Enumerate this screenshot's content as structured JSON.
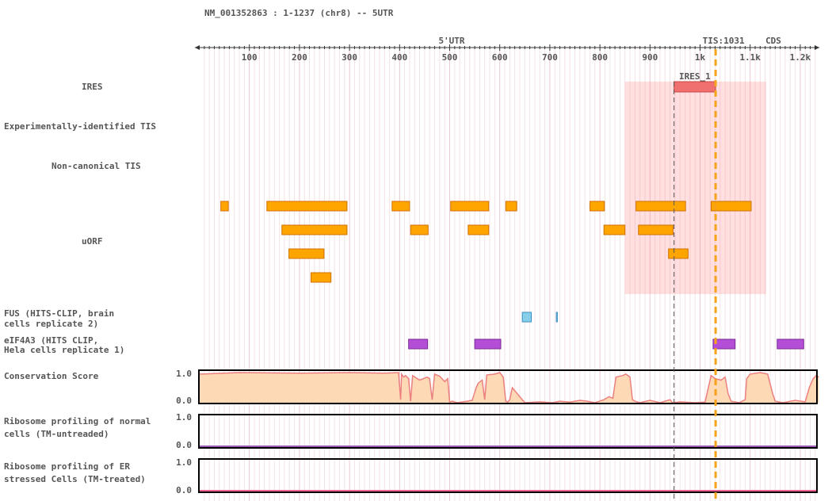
{
  "title": "NM_001352863 : 1-1237 (chr8) -- 5UTR",
  "axis": {
    "range": [
      1,
      1237
    ],
    "ticks": [
      {
        "pos": 100,
        "label": "100"
      },
      {
        "pos": 200,
        "label": "200"
      },
      {
        "pos": 300,
        "label": "300"
      },
      {
        "pos": 400,
        "label": "400"
      },
      {
        "pos": 500,
        "label": "500"
      },
      {
        "pos": 600,
        "label": "600"
      },
      {
        "pos": 700,
        "label": "700"
      },
      {
        "pos": 800,
        "label": "800"
      },
      {
        "pos": 900,
        "label": "900"
      },
      {
        "pos": 1000,
        "label": "1k"
      },
      {
        "pos": 1100,
        "label": "1.1k"
      },
      {
        "pos": 1200,
        "label": "1.2k"
      }
    ]
  },
  "regions": {
    "utr5_label": "5'UTR",
    "tis_label": "TIS:1031",
    "tis_pos": 1031,
    "cds_label": "CDS",
    "colors": {
      "utr5": "#dd0000",
      "tis": "#f7a21b",
      "cds": "#008800"
    }
  },
  "tracks": {
    "ires": {
      "label": "IRES",
      "items": [
        {
          "name": "IRES_1",
          "start": 948,
          "end": 1031
        }
      ],
      "highlight": {
        "start": 850,
        "end": 1132
      },
      "color": "#f07070"
    },
    "exp_tis": {
      "label": "Experimentally-identified TIS"
    },
    "noncanonical_tis": {
      "label": "Non-canonical TIS"
    },
    "uorf": {
      "label": "uORF",
      "color": "#ffa500",
      "rows": [
        [
          [
            43,
            58
          ],
          [
            135,
            295
          ],
          [
            385,
            420
          ],
          [
            502,
            578
          ],
          [
            612,
            634
          ],
          [
            780,
            809
          ],
          [
            872,
            971
          ],
          [
            1022,
            1102
          ]
        ],
        [
          [
            165,
            295
          ],
          [
            422,
            457
          ],
          [
            537,
            578
          ],
          [
            808,
            850
          ],
          [
            877,
            946
          ]
        ],
        [
          [
            179,
            249
          ],
          [
            937,
            976
          ]
        ],
        [
          [
            223,
            263
          ]
        ]
      ]
    },
    "fus": {
      "label": "FUS (HITS-CLIP, brain",
      "label2": "cells replicate 2)",
      "color": "#87ceeb",
      "items": [
        [
          645,
          663
        ],
        [
          713,
          715
        ]
      ]
    },
    "eif4a3": {
      "label": "eIF4A3 (HITS CLIP,",
      "label2": "Hela cells replicate 1)",
      "color": "#b44ed6",
      "items": [
        [
          418,
          456
        ],
        [
          550,
          602
        ],
        [
          1026,
          1070
        ],
        [
          1154,
          1207
        ]
      ]
    },
    "conservation": {
      "label": "Conservation Score",
      "ymax": "1.0",
      "ymin": "0.0",
      "fill": "#fdd9b5",
      "line": "#ec7f7f",
      "points": [
        [
          1,
          0.95
        ],
        [
          80,
          1.0
        ],
        [
          200,
          0.98
        ],
        [
          300,
          1.0
        ],
        [
          370,
          0.98
        ],
        [
          398,
          1.0
        ],
        [
          402,
          0.1
        ],
        [
          404,
          0.95
        ],
        [
          408,
          0.85
        ],
        [
          412,
          0.9
        ],
        [
          418,
          0.8
        ],
        [
          422,
          0.05
        ],
        [
          426,
          0.9
        ],
        [
          440,
          0.75
        ],
        [
          455,
          0.85
        ],
        [
          460,
          0.8
        ],
        [
          465,
          0.1
        ],
        [
          470,
          0.95
        ],
        [
          480,
          0.88
        ],
        [
          490,
          0.7
        ],
        [
          496,
          0.8
        ],
        [
          500,
          0.02
        ],
        [
          505,
          0.05
        ],
        [
          515,
          0.0
        ],
        [
          535,
          0.05
        ],
        [
          545,
          0.08
        ],
        [
          553,
          0.5
        ],
        [
          557,
          0.65
        ],
        [
          565,
          0.75
        ],
        [
          570,
          0.1
        ],
        [
          574,
          0.92
        ],
        [
          590,
          0.95
        ],
        [
          600,
          1.0
        ],
        [
          607,
          0.85
        ],
        [
          612,
          0.05
        ],
        [
          616,
          0.02
        ],
        [
          620,
          0.1
        ],
        [
          625,
          0.5
        ],
        [
          650,
          0.0
        ],
        [
          680,
          0.03
        ],
        [
          705,
          0.0
        ],
        [
          720,
          0.05
        ],
        [
          740,
          0.02
        ],
        [
          760,
          0.08
        ],
        [
          775,
          0.05
        ],
        [
          790,
          0.0
        ],
        [
          808,
          0.1
        ],
        [
          818,
          0.2
        ],
        [
          826,
          0.15
        ],
        [
          832,
          0.85
        ],
        [
          845,
          0.9
        ],
        [
          852,
          0.95
        ],
        [
          860,
          0.85
        ],
        [
          865,
          0.1
        ],
        [
          870,
          0.05
        ],
        [
          880,
          0.0
        ],
        [
          900,
          0.08
        ],
        [
          920,
          0.0
        ],
        [
          940,
          0.1
        ],
        [
          945,
          0.0
        ],
        [
          960,
          0.03
        ],
        [
          990,
          0.0
        ],
        [
          1010,
          0.02
        ],
        [
          1022,
          0.9
        ],
        [
          1030,
          0.8
        ],
        [
          1042,
          0.75
        ],
        [
          1050,
          0.85
        ],
        [
          1056,
          0.3
        ],
        [
          1062,
          0.05
        ],
        [
          1078,
          0.0
        ],
        [
          1090,
          0.1
        ],
        [
          1093,
          0.8
        ],
        [
          1100,
          0.95
        ],
        [
          1120,
          1.0
        ],
        [
          1135,
          0.95
        ],
        [
          1145,
          0.3
        ],
        [
          1150,
          0.05
        ],
        [
          1165,
          0.0
        ],
        [
          1190,
          0.08
        ],
        [
          1210,
          0.03
        ],
        [
          1218,
          0.5
        ],
        [
          1226,
          0.8
        ],
        [
          1232,
          0.9
        ],
        [
          1237,
          0.85
        ]
      ]
    },
    "ribo_normal": {
      "label": "Ribosome profiling of normal",
      "label2": "cells (TM-untreaded)",
      "ymax": "1.0",
      "ymin": "0.0",
      "line": "#9b59b6"
    },
    "ribo_er": {
      "label": "Ribosome profiling of ER",
      "label2": "stressed Cells (TM-treated)",
      "ymax": "1.0",
      "ymin": "0.0",
      "line": "#f06292"
    }
  }
}
